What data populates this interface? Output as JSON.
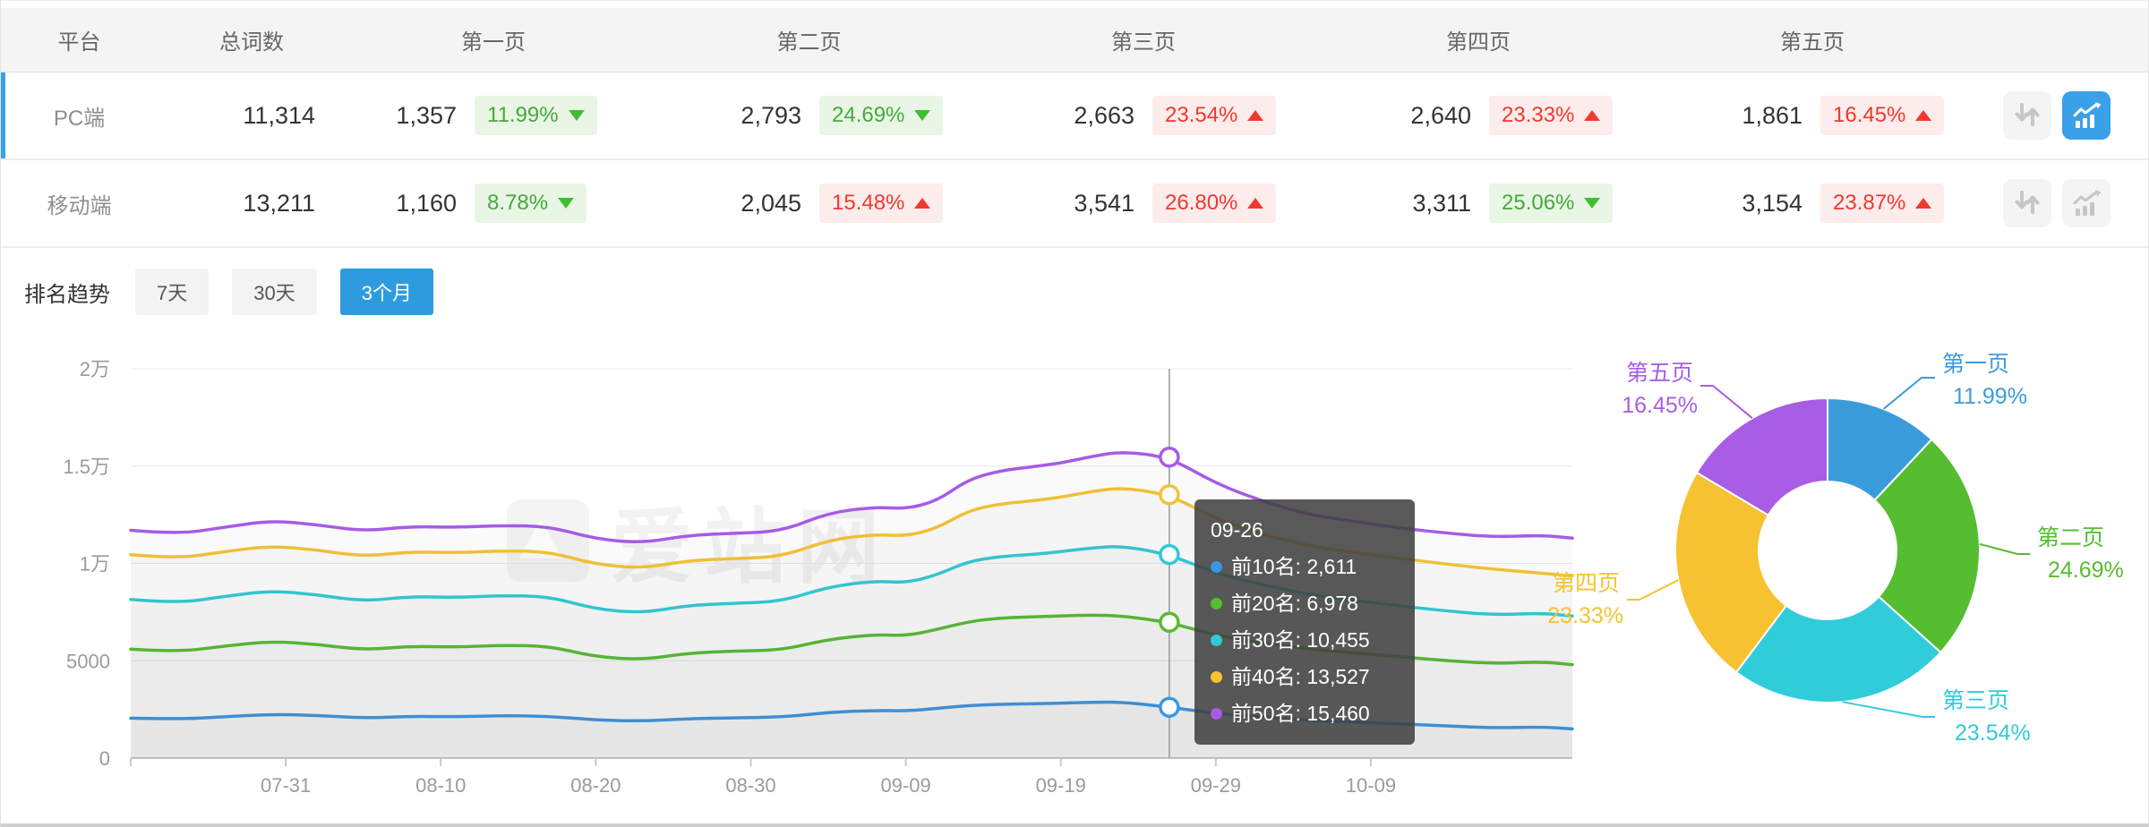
{
  "table": {
    "headers": {
      "platform": "平台",
      "total": "总词数",
      "pages": [
        "第一页",
        "第二页",
        "第三页",
        "第四页",
        "第五页"
      ]
    },
    "rows": [
      {
        "platform": "PC端",
        "total": "11,314",
        "selected": true,
        "pages": [
          {
            "count": "1,357",
            "pct": "11.99%",
            "dir": "down",
            "tone": "green"
          },
          {
            "count": "2,793",
            "pct": "24.69%",
            "dir": "down",
            "tone": "green"
          },
          {
            "count": "2,663",
            "pct": "23.54%",
            "dir": "up",
            "tone": "red"
          },
          {
            "count": "2,640",
            "pct": "23.33%",
            "dir": "up",
            "tone": "red"
          },
          {
            "count": "1,861",
            "pct": "16.45%",
            "dir": "up",
            "tone": "red"
          }
        ]
      },
      {
        "platform": "移动端",
        "total": "13,211",
        "selected": false,
        "pages": [
          {
            "count": "1,160",
            "pct": "8.78%",
            "dir": "down",
            "tone": "green"
          },
          {
            "count": "2,045",
            "pct": "15.48%",
            "dir": "up",
            "tone": "red"
          },
          {
            "count": "3,541",
            "pct": "26.80%",
            "dir": "up",
            "tone": "red"
          },
          {
            "count": "3,311",
            "pct": "25.06%",
            "dir": "down",
            "tone": "green"
          },
          {
            "count": "3,154",
            "pct": "23.87%",
            "dir": "up",
            "tone": "red"
          }
        ]
      }
    ]
  },
  "trend": {
    "title": "排名趋势",
    "tabs": [
      {
        "label": "7天",
        "active": false
      },
      {
        "label": "30天",
        "active": false
      },
      {
        "label": "3个月",
        "active": true
      }
    ]
  },
  "page": {
    "watermark": "爱站网"
  },
  "chart_data": [
    {
      "type": "line",
      "title": "排名趋势",
      "x_domain": [
        0,
        93
      ],
      "x_ticks": [
        {
          "day": 10,
          "label": "07-31"
        },
        {
          "day": 20,
          "label": "08-10"
        },
        {
          "day": 30,
          "label": "08-20"
        },
        {
          "day": 40,
          "label": "08-30"
        },
        {
          "day": 50,
          "label": "09-09"
        },
        {
          "day": 60,
          "label": "09-19"
        },
        {
          "day": 70,
          "label": "09-29"
        },
        {
          "day": 80,
          "label": "10-09"
        }
      ],
      "y_ticks": [
        {
          "value": 0,
          "label": "0"
        },
        {
          "value": 5000,
          "label": "5000"
        },
        {
          "value": 10000,
          "label": "1万"
        },
        {
          "value": 15000,
          "label": "1.5万"
        },
        {
          "value": 20000,
          "label": "2万"
        }
      ],
      "ylim": [
        0,
        20000
      ],
      "grid": true,
      "days": [
        0,
        3,
        6,
        9,
        12,
        15,
        18,
        21,
        24,
        27,
        30,
        33,
        36,
        39,
        42,
        45,
        48,
        50,
        52,
        54,
        56,
        58,
        60,
        62,
        64,
        67,
        70,
        73,
        76,
        79,
        82,
        85,
        88,
        91,
        93
      ],
      "series": [
        {
          "name": "前10名",
          "color": "#3b96e2",
          "values": [
            2050,
            2000,
            2120,
            2250,
            2200,
            2050,
            2150,
            2120,
            2180,
            2150,
            1950,
            1900,
            2020,
            2070,
            2100,
            2350,
            2450,
            2420,
            2550,
            2700,
            2760,
            2790,
            2820,
            2870,
            2880,
            2611,
            2300,
            2100,
            1950,
            1850,
            1750,
            1650,
            1550,
            1600,
            1500
          ]
        },
        {
          "name": "前20名",
          "color": "#55bd30",
          "values": [
            5600,
            5450,
            5750,
            6000,
            5850,
            5550,
            5750,
            5700,
            5800,
            5750,
            5200,
            5050,
            5400,
            5500,
            5550,
            6100,
            6350,
            6280,
            6600,
            7000,
            7200,
            7250,
            7300,
            7350,
            7300,
            6978,
            6300,
            5900,
            5600,
            5400,
            5200,
            5000,
            4850,
            4950,
            4800
          ]
        },
        {
          "name": "前30名",
          "color": "#2fcbd8",
          "values": [
            8150,
            7950,
            8300,
            8600,
            8400,
            8050,
            8300,
            8250,
            8350,
            8300,
            7650,
            7450,
            7850,
            7950,
            8050,
            8800,
            9100,
            9000,
            9400,
            10100,
            10350,
            10450,
            10600,
            10800,
            10900,
            10455,
            9500,
            8900,
            8400,
            8100,
            7800,
            7550,
            7350,
            7450,
            7300
          ]
        },
        {
          "name": "前40名",
          "color": "#f5c235",
          "values": [
            10450,
            10250,
            10600,
            10900,
            10700,
            10350,
            10600,
            10550,
            10650,
            10600,
            9950,
            9750,
            10150,
            10250,
            10350,
            11200,
            11500,
            11400,
            11800,
            12700,
            13050,
            13200,
            13400,
            13700,
            13900,
            13527,
            12300,
            11500,
            10900,
            10550,
            10250,
            9950,
            9700,
            9500,
            9350
          ]
        },
        {
          "name": "前50名",
          "color": "#a55ce5",
          "values": [
            11700,
            11500,
            11850,
            12200,
            12000,
            11650,
            11900,
            11850,
            11950,
            11900,
            11250,
            11050,
            11450,
            11550,
            11650,
            12600,
            12900,
            12800,
            13200,
            14300,
            14750,
            14950,
            15150,
            15500,
            15750,
            15460,
            14100,
            13200,
            12500,
            12150,
            11800,
            11550,
            11350,
            11450,
            11300
          ]
        }
      ],
      "tooltip": {
        "date": "09-26",
        "day": 67,
        "entries": [
          {
            "name": "前10名",
            "value": "2,611",
            "color": "#3b96e2"
          },
          {
            "name": "前20名",
            "value": "6,978",
            "color": "#55bd30"
          },
          {
            "name": "前30名",
            "value": "10,455",
            "color": "#2fcbd8"
          },
          {
            "name": "前40名",
            "value": "13,527",
            "color": "#f5c235"
          },
          {
            "name": "前50名",
            "value": "15,460",
            "color": "#a55ce5"
          }
        ]
      }
    },
    {
      "type": "pie",
      "donut": true,
      "slices": [
        {
          "label": "第一页",
          "pct": 11.99,
          "display": "11.99%",
          "color": "#3b9cdb"
        },
        {
          "label": "第二页",
          "pct": 24.69,
          "display": "24.69%",
          "color": "#55bd30"
        },
        {
          "label": "第三页",
          "pct": 23.54,
          "display": "23.54%",
          "color": "#30ccda"
        },
        {
          "label": "第四页",
          "pct": 23.33,
          "display": "23.33%",
          "color": "#f6c231"
        },
        {
          "label": "第五页",
          "pct": 16.45,
          "display": "16.45%",
          "color": "#a95ce5"
        }
      ]
    }
  ]
}
